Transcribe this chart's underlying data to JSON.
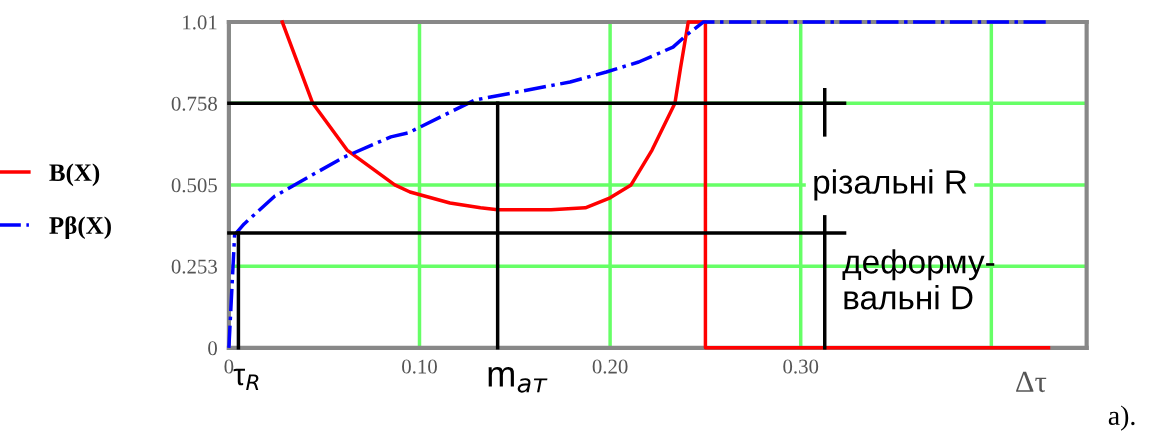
{
  "chart_data": {
    "type": "line",
    "xlabel": "Δτ",
    "xlim": [
      0,
      0.45
    ],
    "ylim": [
      0,
      1.01
    ],
    "xticks": [
      0,
      {
        "value": 0.1,
        "label": "0.10"
      },
      {
        "value": 0.2,
        "label": "0.20"
      },
      {
        "value": 0.3,
        "label": "0.30"
      },
      {
        "value": 0.4,
        "label": null
      }
    ],
    "yticks": [
      0,
      0.253,
      0.505,
      0.758,
      1.01
    ],
    "grid": true,
    "legend": "left",
    "marker": "none",
    "series": [
      {
        "name": "B(X)",
        "color": "#ff0000",
        "line_style": "solid",
        "x": [
          0.028,
          0.044,
          0.062,
          0.087,
          0.095,
          0.116,
          0.132,
          0.141,
          0.169,
          0.187,
          0.2,
          0.211,
          0.222,
          0.234,
          0.237,
          0.241,
          0.25,
          0.25,
          0.43
        ],
        "values": [
          1.01,
          0.758,
          0.613,
          0.505,
          0.483,
          0.449,
          0.434,
          0.428,
          0.428,
          0.434,
          0.465,
          0.505,
          0.613,
          0.758,
          0.87,
          1.01,
          1.01,
          0,
          0
        ]
      },
      {
        "name": "Pβ(X)",
        "color": "#0000ff",
        "line_style": "dashdot",
        "x": [
          0,
          0.003,
          0.008,
          0.024,
          0.06,
          0.085,
          0.094,
          0.129,
          0.179,
          0.198,
          0.215,
          0.233,
          0.24,
          0.249,
          0.43
        ],
        "values": [
          0,
          0.35,
          0.384,
          0.47,
          0.59,
          0.654,
          0.666,
          0.768,
          0.824,
          0.855,
          0.886,
          0.932,
          0.969,
          1.01,
          1.01
        ]
      },
      {
        "color": "#000000",
        "line_style": "solid",
        "x": [
          0,
          0.323
        ],
        "values": [
          0.758,
          0.758
        ]
      },
      {
        "color": "#000000",
        "line_style": "solid",
        "x": [
          0,
          0.323
        ],
        "values": [
          0.356,
          0.356
        ]
      },
      {
        "color": "#000000",
        "line_style": "solid",
        "x": [
          0.141,
          0.141
        ],
        "values": [
          0,
          0.758
        ]
      },
      {
        "color": "#000000",
        "line_style": "solid",
        "x": [
          0.005,
          0.005
        ],
        "values": [
          0,
          0.356
        ]
      },
      {
        "color": "#000000",
        "line_style": "solid",
        "x": [
          0.3126,
          0.3126
        ],
        "values": [
          0.8,
          0.66
        ]
      },
      {
        "color": "#000000",
        "line_style": "solid",
        "x": [
          0.3126,
          0.3126
        ],
        "values": [
          0.406,
          0
        ]
      }
    ],
    "annotations": [
      "τ$_{R}$",
      "m$_{ат}$",
      "різальні R",
      "деформу-\nвальні D",
      "a)."
    ]
  }
}
